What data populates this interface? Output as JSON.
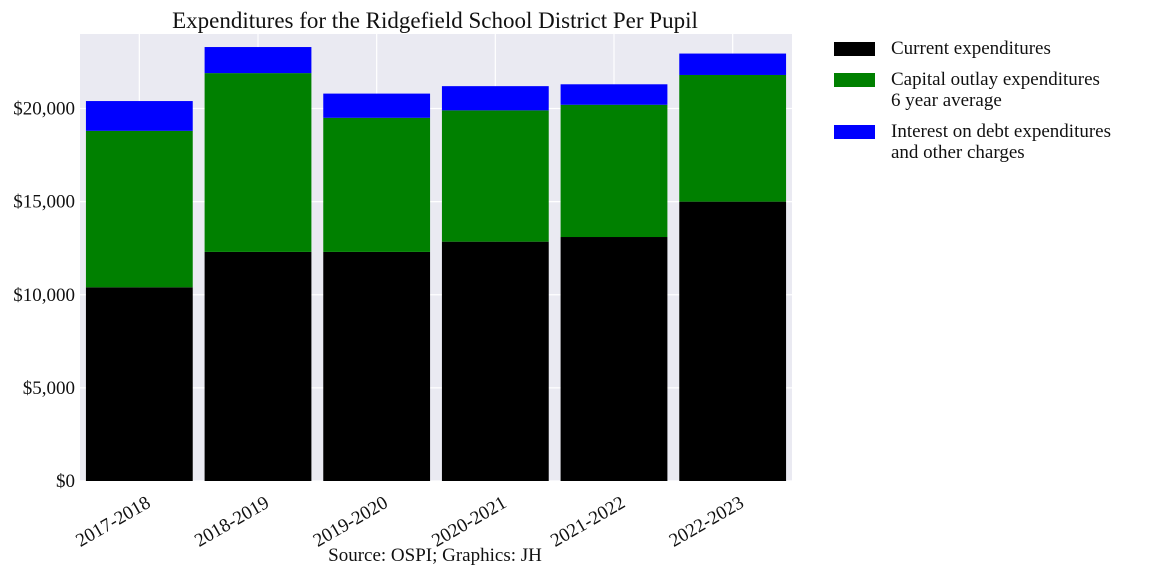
{
  "chart_data": {
    "type": "bar",
    "stacked": true,
    "title": "Expenditures for the Ridgefield School District Per Pupil",
    "xlabel": "",
    "ylabel": "",
    "caption": "Source: OSPI; Graphics: JH",
    "categories": [
      "2017-2018",
      "2018-2019",
      "2019-2020",
      "2020-2021",
      "2021-2022",
      "2022-2023"
    ],
    "ylim": [
      0,
      24000
    ],
    "yticks": [
      0,
      5000,
      10000,
      15000,
      20000
    ],
    "ytick_labels": [
      "$0",
      "$5,000",
      "$10,000",
      "$15,000",
      "$20,000"
    ],
    "grid": true,
    "legend_position": "outside-right",
    "series": [
      {
        "name": "Current expenditures",
        "color": "#000000",
        "values": [
          10400,
          12300,
          12300,
          12850,
          13100,
          15000
        ]
      },
      {
        "name": "Capital outlay expenditures\n6 year average",
        "color": "#008000",
        "values": [
          8400,
          9600,
          7200,
          7050,
          7100,
          6800
        ]
      },
      {
        "name": "Interest on debt expenditures\nand other charges",
        "color": "#0000ff",
        "values": [
          1600,
          1400,
          1300,
          1300,
          1100,
          1150
        ]
      }
    ],
    "background_color": "#eaeaf2",
    "grid_color": "#ffffff"
  }
}
